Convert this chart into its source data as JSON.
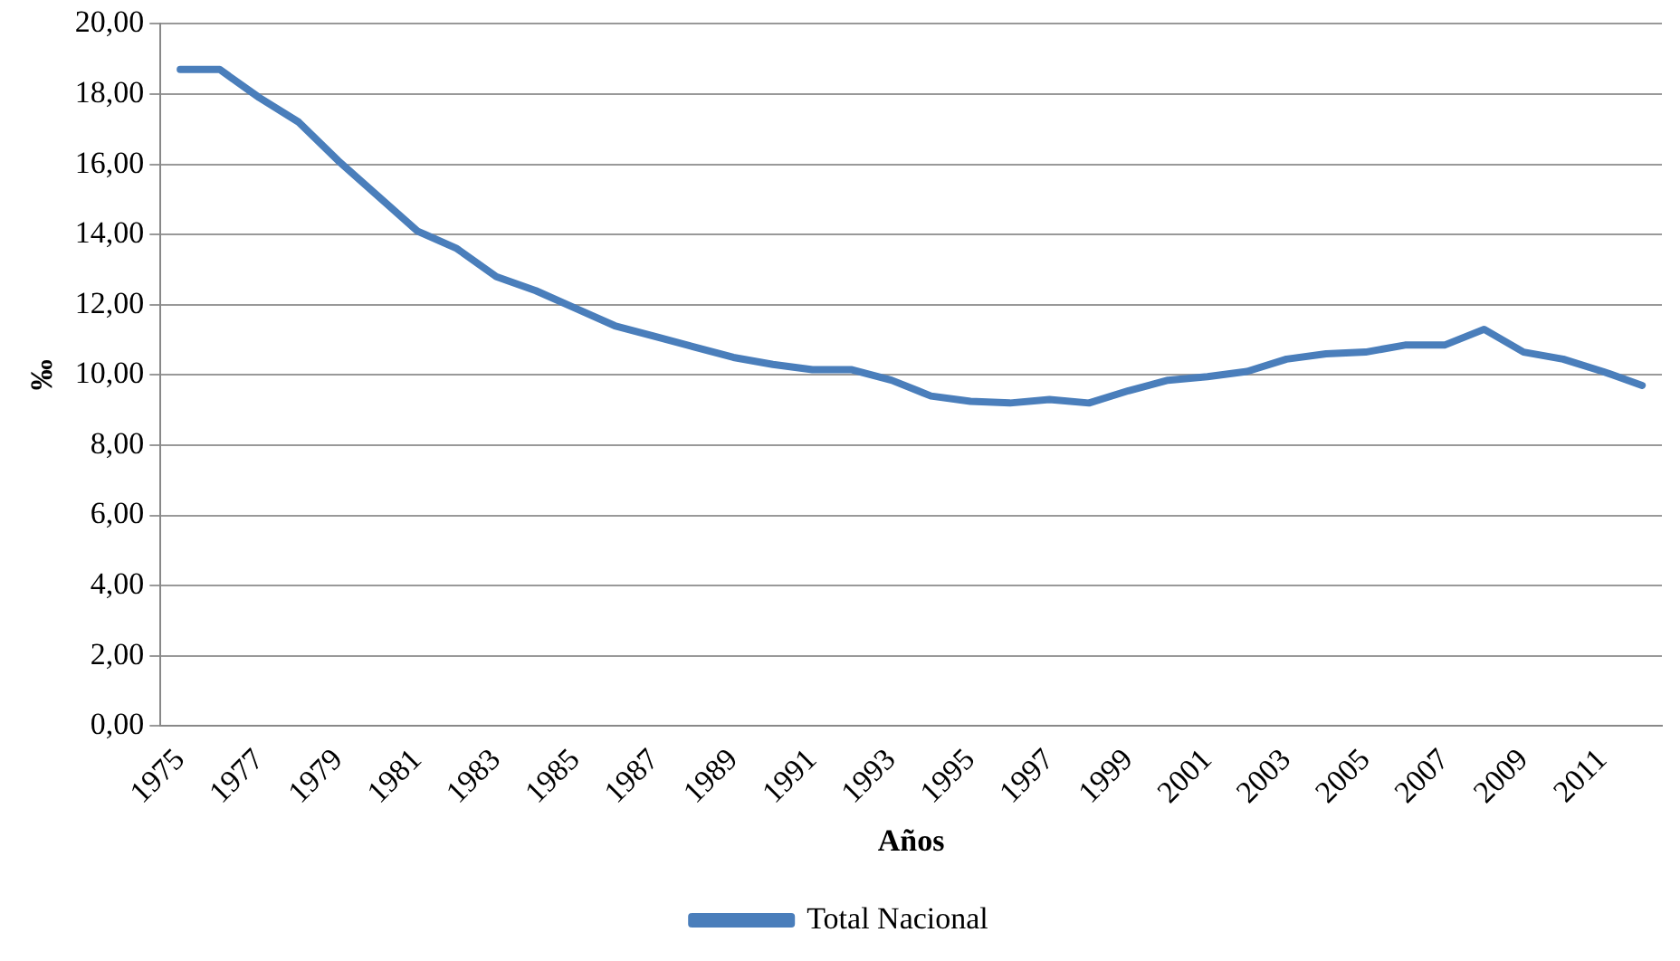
{
  "chart_data": {
    "type": "line",
    "xlabel": "Años",
    "ylabel": "‰",
    "categories": [
      "1975",
      null,
      "1977",
      null,
      "1979",
      null,
      "1981",
      null,
      "1983",
      null,
      "1985",
      null,
      "1987",
      null,
      "1989",
      null,
      "1991",
      null,
      "1993",
      null,
      "1995",
      null,
      "1997",
      null,
      "1999",
      null,
      "2001",
      null,
      "2003",
      null,
      "2005",
      null,
      "2007",
      null,
      "2009",
      null,
      "2011",
      null
    ],
    "series": [
      {
        "name": "Total Nacional",
        "color": "#4a7ebb",
        "values": [
          18.7,
          18.7,
          17.9,
          17.2,
          16.1,
          15.1,
          14.1,
          13.6,
          12.8,
          12.4,
          11.9,
          11.4,
          11.1,
          10.8,
          10.5,
          10.3,
          10.15,
          10.15,
          9.85,
          9.4,
          9.25,
          9.2,
          9.3,
          9.2,
          9.55,
          9.85,
          9.95,
          10.1,
          10.45,
          10.6,
          10.65,
          10.85,
          10.85,
          11.3,
          10.65,
          10.45,
          10.1,
          9.7
        ]
      }
    ],
    "ylim": [
      0,
      20
    ],
    "yticks": [
      {
        "value": 0,
        "label": "0,00"
      },
      {
        "value": 2,
        "label": "2,00"
      },
      {
        "value": 4,
        "label": "4,00"
      },
      {
        "value": 6,
        "label": "6,00"
      },
      {
        "value": 8,
        "label": "8,00"
      },
      {
        "value": 10,
        "label": "10,00"
      },
      {
        "value": 12,
        "label": "12,00"
      },
      {
        "value": 14,
        "label": "14,00"
      },
      {
        "value": 16,
        "label": "16,00"
      },
      {
        "value": 18,
        "label": "18,00"
      },
      {
        "value": 20,
        "label": "20,00"
      }
    ],
    "grid": "y",
    "legend": "bottom",
    "marker": "none",
    "line_style": "solid"
  }
}
